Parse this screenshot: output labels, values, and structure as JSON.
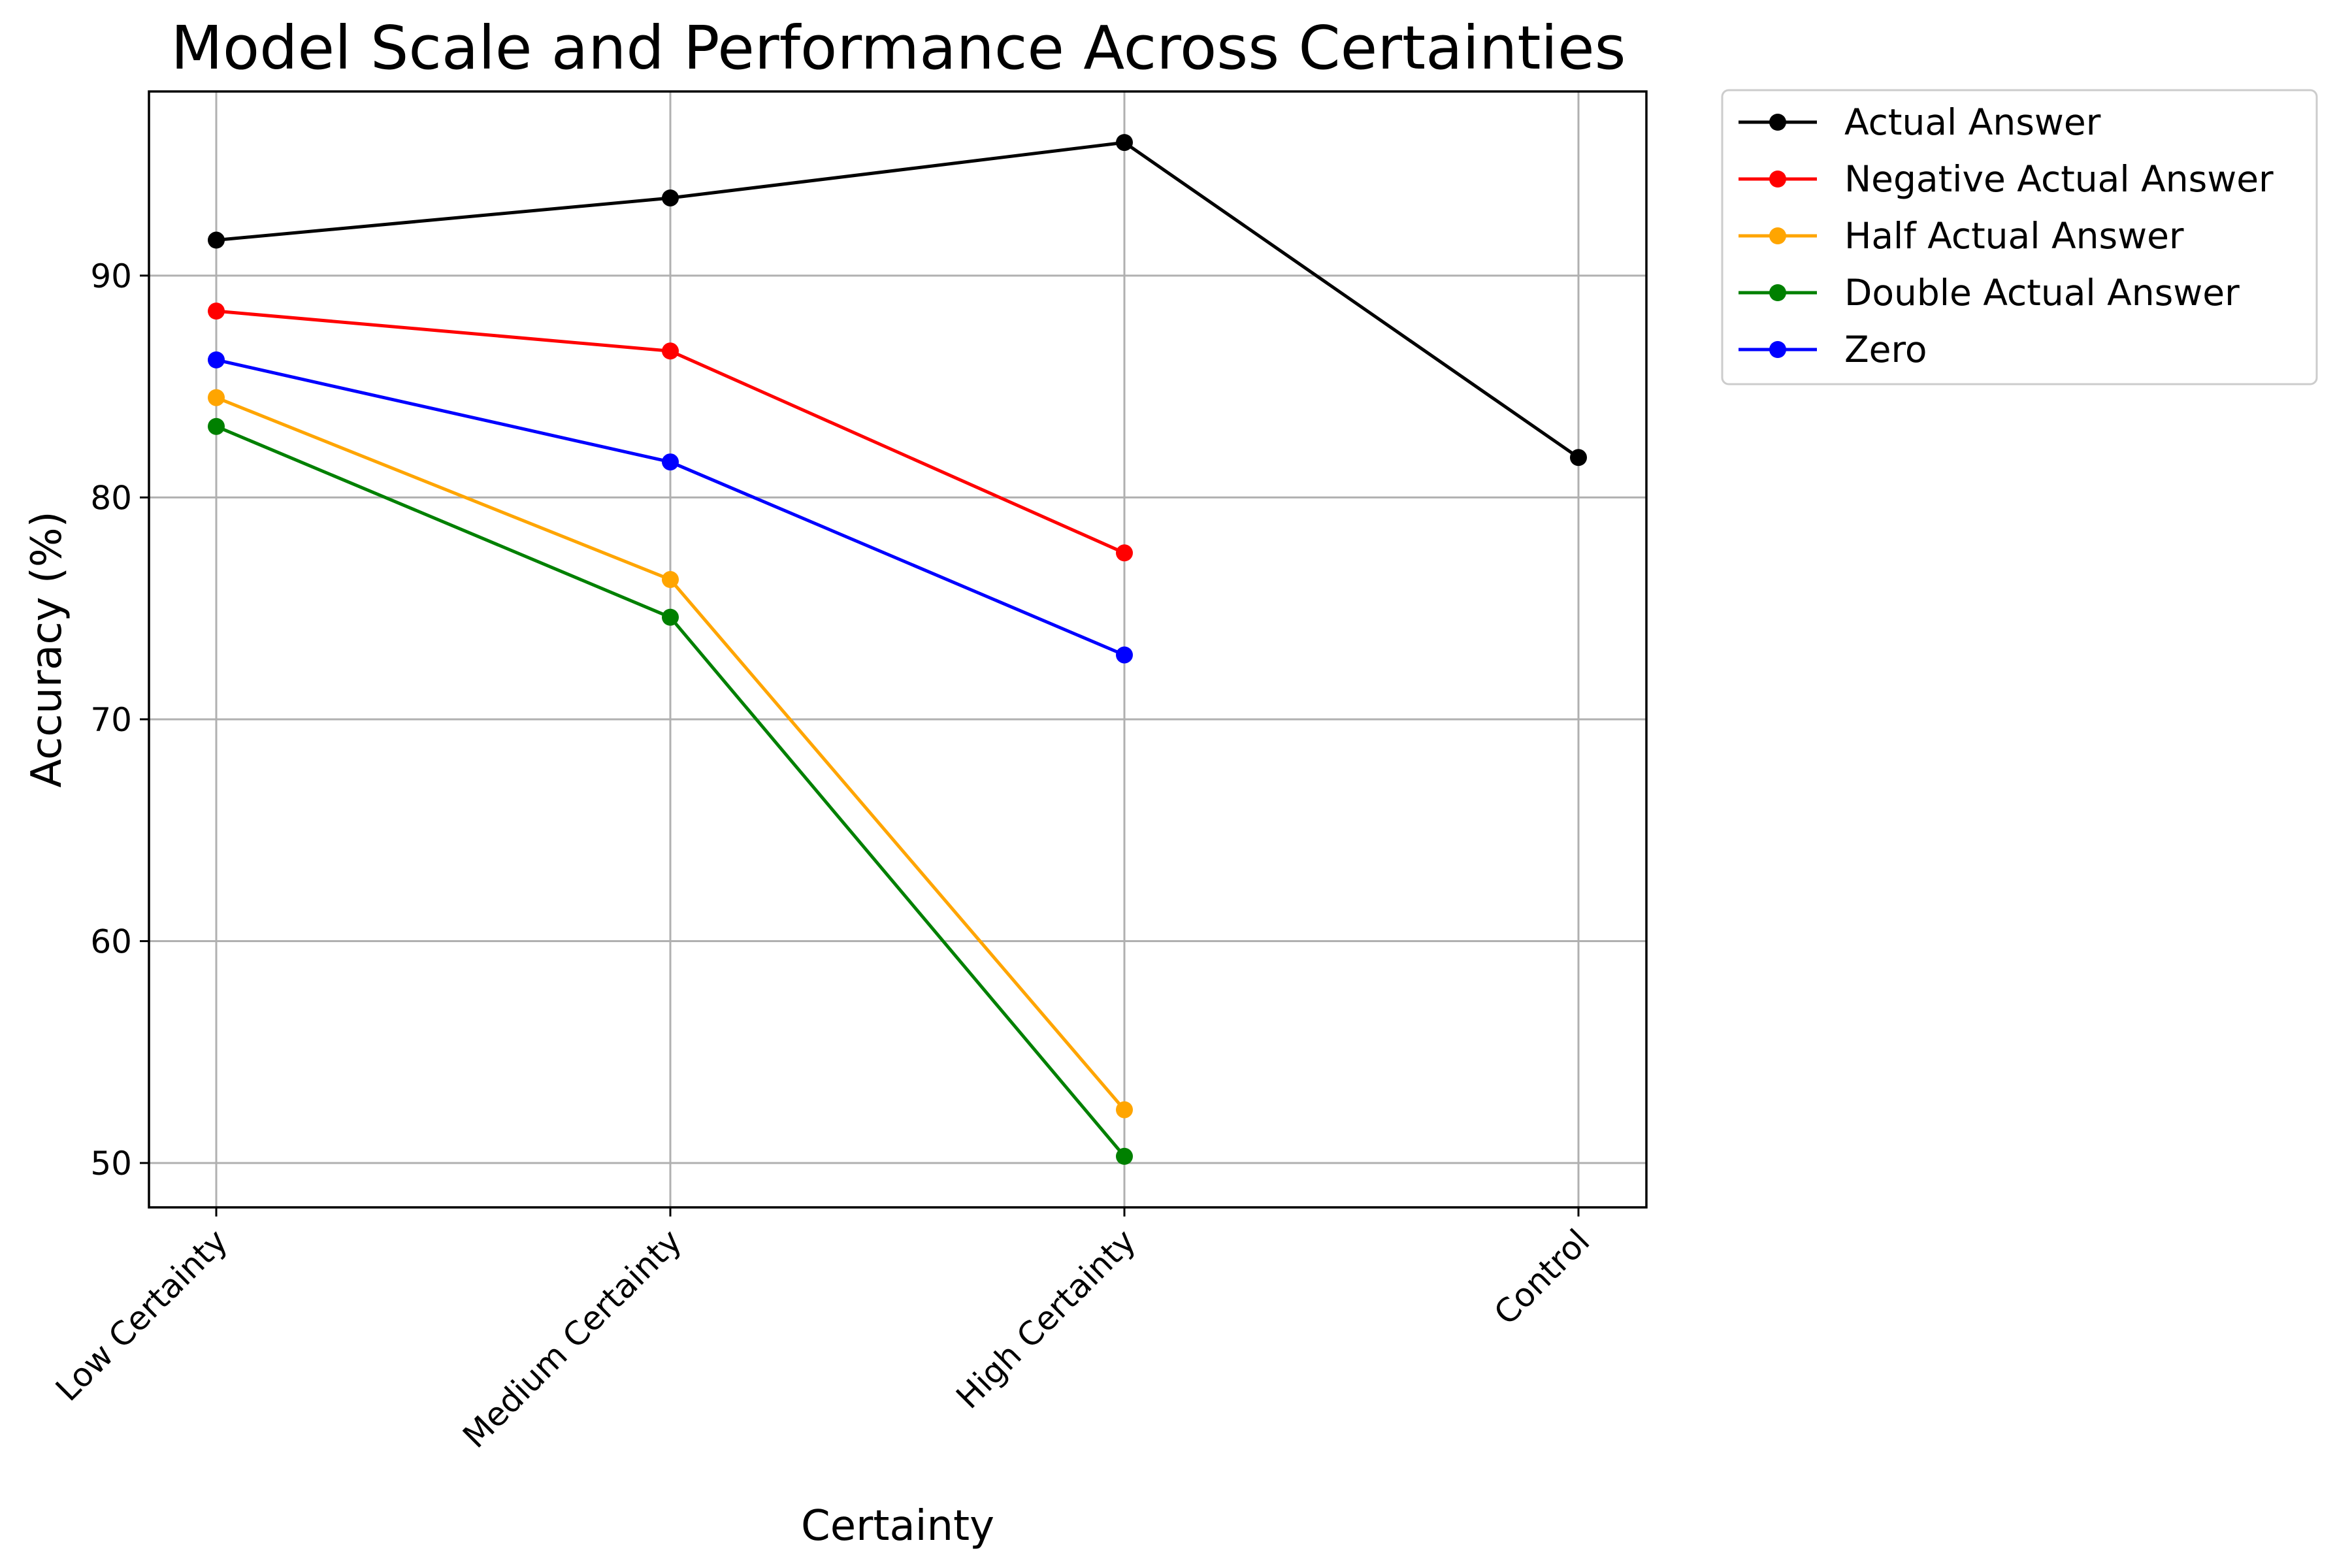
{
  "chart_data": {
    "type": "line",
    "title": "Model Scale and Performance Across Certainties",
    "xlabel": "Certainty",
    "ylabel": "Accuracy (%)",
    "categories": [
      "Low Certainty",
      "Medium Certainty",
      "High Certainty",
      "Control"
    ],
    "ylim": [
      48,
      98.3
    ],
    "yticks": [
      50,
      60,
      70,
      80,
      90
    ],
    "grid": true,
    "legend_position": "outside top-right",
    "series": [
      {
        "name": "Actual Answer",
        "color": "#000000",
        "values": [
          91.6,
          93.5,
          96.0,
          81.8
        ]
      },
      {
        "name": "Negative Actual Answer",
        "color": "#ff0000",
        "values": [
          88.4,
          86.6,
          77.5,
          null
        ]
      },
      {
        "name": "Half Actual Answer",
        "color": "#ffa500",
        "values": [
          84.5,
          76.3,
          52.4,
          null
        ]
      },
      {
        "name": "Double Actual Answer",
        "color": "#008000",
        "values": [
          83.2,
          74.6,
          50.3,
          null
        ]
      },
      {
        "name": "Zero",
        "color": "#0000ff",
        "values": [
          86.2,
          81.6,
          72.9,
          null
        ]
      }
    ]
  }
}
